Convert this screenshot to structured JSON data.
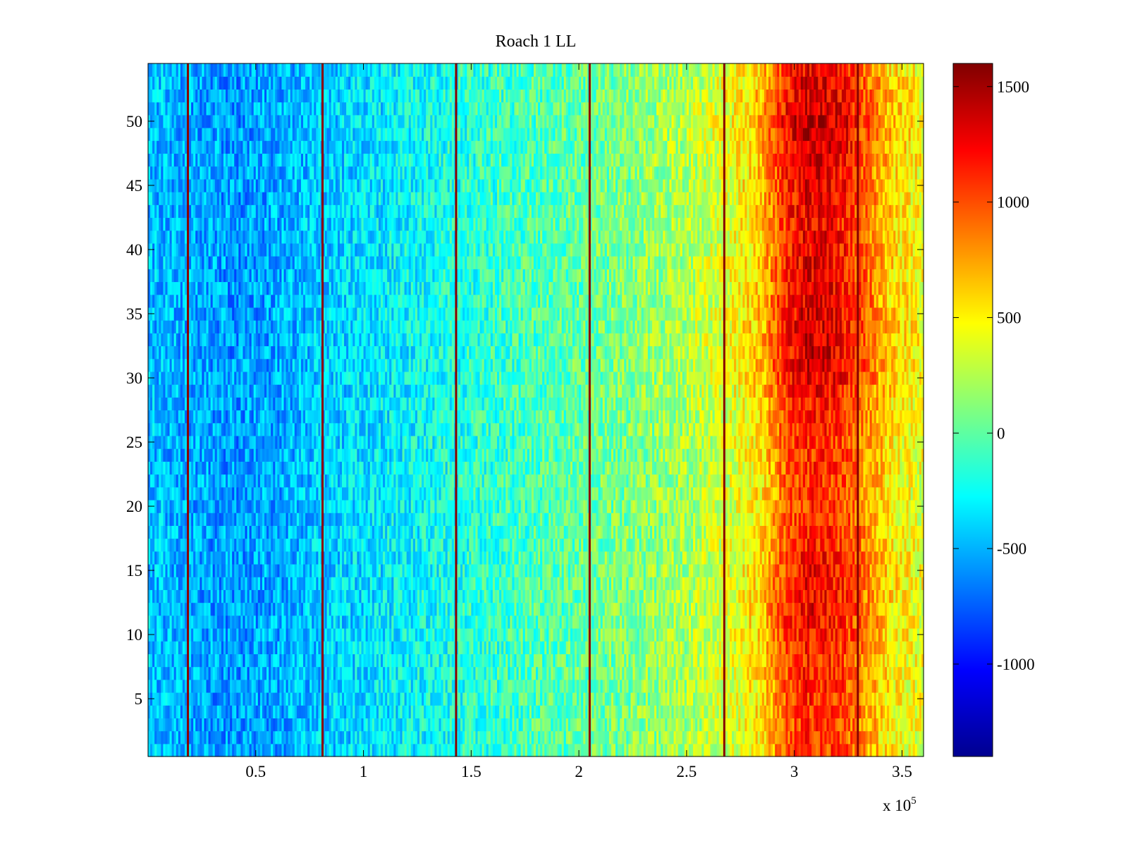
{
  "chart_data": {
    "type": "heatmap",
    "title": "Roach 1 LL",
    "xlabel": "",
    "ylabel": "",
    "x_range": [
      0,
      360000
    ],
    "y_range": [
      0.5,
      54.5
    ],
    "x_ticks": [
      50000,
      100000,
      150000,
      200000,
      250000,
      300000,
      350000
    ],
    "x_tick_labels": [
      "0.5",
      "1",
      "1.5",
      "2",
      "2.5",
      "3",
      "3.5"
    ],
    "x_exponent_label": {
      "base": "x 10",
      "exponent": "5"
    },
    "y_ticks": [
      5,
      10,
      15,
      20,
      25,
      30,
      35,
      40,
      45,
      50
    ],
    "y_tick_labels": [
      "5",
      "10",
      "15",
      "20",
      "25",
      "30",
      "35",
      "40",
      "45",
      "50"
    ],
    "colormap": "jet",
    "color_range": [
      -1400,
      1600
    ],
    "colorbar_ticks": [
      -1000,
      -500,
      0,
      500,
      1000,
      1500
    ],
    "colorbar_tick_labels": [
      "-1000",
      "-500",
      "0",
      "500",
      "1000",
      "1500"
    ],
    "n_rows": 54,
    "x_columns": 360,
    "column_trend": {
      "x": [
        0,
        20000,
        40000,
        60000,
        80000,
        100000,
        130000,
        160000,
        190000,
        220000,
        250000,
        270000,
        285000,
        295000,
        305000,
        315000,
        325000,
        335000,
        345000,
        360000
      ],
      "value": [
        -450,
        -520,
        -580,
        -520,
        -420,
        -360,
        -250,
        -120,
        -20,
        80,
        220,
        380,
        600,
        1000,
        1200,
        1180,
        1050,
        800,
        550,
        420
      ]
    },
    "row_modulation": {
      "y": [
        1,
        8,
        12,
        16,
        20,
        24,
        28,
        31,
        34,
        38,
        42,
        46,
        50,
        54
      ],
      "factor": [
        0.9,
        0.95,
        1.05,
        1.0,
        0.9,
        0.92,
        1.0,
        1.15,
        1.12,
        1.08,
        1.05,
        1.1,
        1.2,
        1.05
      ]
    },
    "spike_columns_x": [
      18500,
      81000,
      143000,
      205000,
      267500,
      329500
    ],
    "spike_value": 1500
  }
}
